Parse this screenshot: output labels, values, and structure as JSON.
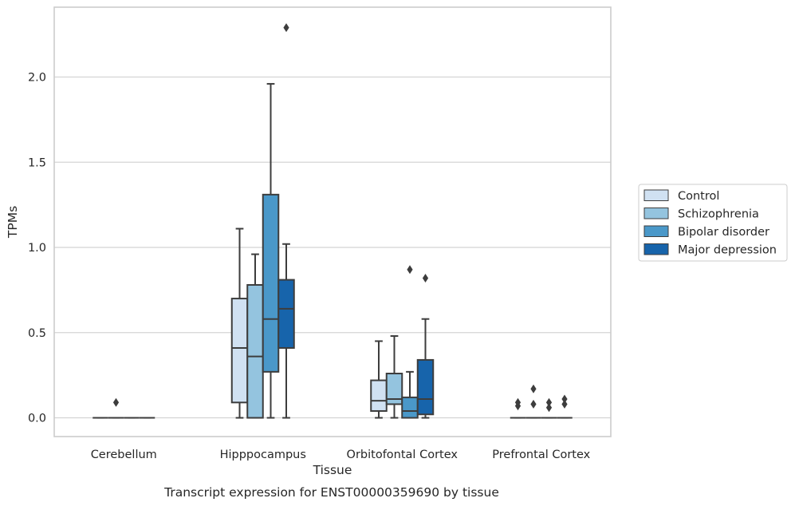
{
  "chart_data": {
    "type": "box",
    "xlabel": "Tissue",
    "ylabel": "TPMs",
    "caption": "Transcript expression for ENST00000359690 by tissue",
    "ylim": [
      -0.11,
      2.41
    ],
    "yticks": [
      0.0,
      0.5,
      1.0,
      1.5,
      2.0
    ],
    "ytick_labels": [
      "0.0",
      "0.5",
      "1.0",
      "1.5",
      "2.0"
    ],
    "grid": true,
    "legend_position": "right",
    "categories": [
      "Cerebellum",
      "Hipppocampus",
      "Orbitofontal Cortex",
      "Prefrontal Cortex"
    ],
    "series": [
      {
        "name": "Control",
        "color": "#d0e1f2",
        "boxes": [
          {
            "whislo": 0.0,
            "q1": 0.0,
            "med": 0.0,
            "q3": 0.0,
            "whishi": 0.0,
            "fliers": []
          },
          {
            "whislo": 0.0,
            "q1": 0.09,
            "med": 0.41,
            "q3": 0.7,
            "whishi": 1.11,
            "fliers": []
          },
          {
            "whislo": 0.0,
            "q1": 0.04,
            "med": 0.1,
            "q3": 0.22,
            "whishi": 0.45,
            "fliers": []
          },
          {
            "whislo": 0.0,
            "q1": 0.0,
            "med": 0.0,
            "q3": 0.0,
            "whishi": 0.0,
            "fliers": [
              0.07,
              0.09
            ]
          }
        ]
      },
      {
        "name": "Schizophrenia",
        "color": "#94c4df",
        "boxes": [
          {
            "whislo": 0.0,
            "q1": 0.0,
            "med": 0.0,
            "q3": 0.0,
            "whishi": 0.0,
            "fliers": [
              0.09
            ]
          },
          {
            "whislo": 0.0,
            "q1": 0.0,
            "med": 0.36,
            "q3": 0.78,
            "whishi": 0.96,
            "fliers": []
          },
          {
            "whislo": 0.0,
            "q1": 0.08,
            "med": 0.11,
            "q3": 0.26,
            "whishi": 0.48,
            "fliers": []
          },
          {
            "whislo": 0.0,
            "q1": 0.0,
            "med": 0.0,
            "q3": 0.0,
            "whishi": 0.0,
            "fliers": [
              0.08,
              0.17
            ]
          }
        ]
      },
      {
        "name": "Bipolar disorder",
        "color": "#4a98c9",
        "boxes": [
          {
            "whislo": 0.0,
            "q1": 0.0,
            "med": 0.0,
            "q3": 0.0,
            "whishi": 0.0,
            "fliers": []
          },
          {
            "whislo": 0.0,
            "q1": 0.27,
            "med": 0.58,
            "q3": 1.31,
            "whishi": 1.96,
            "fliers": []
          },
          {
            "whislo": 0.0,
            "q1": 0.0,
            "med": 0.04,
            "q3": 0.12,
            "whishi": 0.27,
            "fliers": [
              0.87
            ]
          },
          {
            "whislo": 0.0,
            "q1": 0.0,
            "med": 0.0,
            "q3": 0.0,
            "whishi": 0.0,
            "fliers": [
              0.06,
              0.09
            ]
          }
        ]
      },
      {
        "name": "Major depression",
        "color": "#1764ab",
        "boxes": [
          {
            "whislo": 0.0,
            "q1": 0.0,
            "med": 0.0,
            "q3": 0.0,
            "whishi": 0.0,
            "fliers": []
          },
          {
            "whislo": 0.0,
            "q1": 0.41,
            "med": 0.64,
            "q3": 0.81,
            "whishi": 1.02,
            "fliers": [
              2.29
            ]
          },
          {
            "whislo": 0.0,
            "q1": 0.02,
            "med": 0.11,
            "q3": 0.34,
            "whishi": 0.58,
            "fliers": [
              0.82
            ]
          },
          {
            "whislo": 0.0,
            "q1": 0.0,
            "med": 0.0,
            "q3": 0.0,
            "whishi": 0.0,
            "fliers": [
              0.08,
              0.11
            ]
          }
        ]
      }
    ]
  }
}
